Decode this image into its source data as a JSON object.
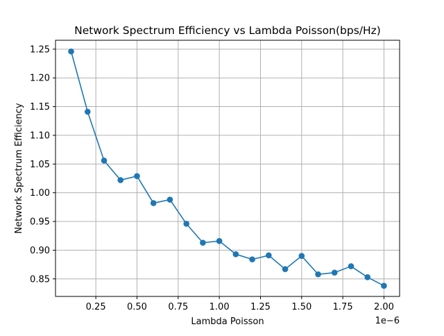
{
  "chart_data": {
    "type": "line",
    "title": "Network Spectrum Efficiency vs Lambda Poisson(bps/Hz)",
    "xlabel": "Lambda Poisson",
    "ylabel": "Network Spectrum Efficiency",
    "x_offset_text": "1e−6",
    "x_scale_factor": 1e-06,
    "xlim": [
      0.005,
      2.095
    ],
    "ylim": [
      0.8195,
      1.2655
    ],
    "grid": true,
    "series_color": "#1f77b4",
    "x_ticks": [
      0.25,
      0.5,
      0.75,
      1.0,
      1.25,
      1.5,
      1.75,
      2.0
    ],
    "x_tick_labels": [
      "0.25",
      "0.50",
      "0.75",
      "1.00",
      "1.25",
      "1.50",
      "1.75",
      "2.00"
    ],
    "y_ticks": [
      0.85,
      0.9,
      0.95,
      1.0,
      1.05,
      1.1,
      1.15,
      1.2,
      1.25
    ],
    "y_tick_labels": [
      "0.85",
      "0.90",
      "0.95",
      "1.00",
      "1.05",
      "1.10",
      "1.15",
      "1.20",
      "1.25"
    ],
    "series": [
      {
        "x": [
          0.1,
          0.2,
          0.3,
          0.4,
          0.5,
          0.6,
          0.7,
          0.8,
          0.9,
          1.0,
          1.1,
          1.2,
          1.3,
          1.4,
          1.5,
          1.6,
          1.7,
          1.8,
          1.9,
          2.0
        ],
        "values": [
          1.246,
          1.141,
          1.056,
          1.022,
          1.029,
          0.982,
          0.988,
          0.946,
          0.913,
          0.916,
          0.893,
          0.884,
          0.891,
          0.867,
          0.89,
          0.858,
          0.861,
          0.872,
          0.853,
          0.838
        ]
      }
    ]
  }
}
